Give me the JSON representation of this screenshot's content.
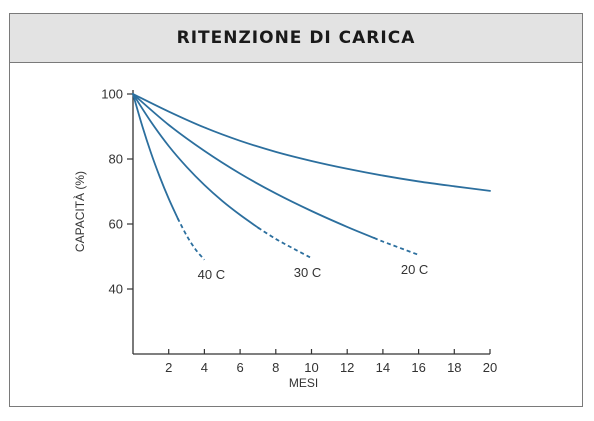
{
  "header": {
    "title": "RITENZIONE DI CARICA"
  },
  "chart_data": {
    "type": "line",
    "title": "RITENZIONE DI CARICA",
    "xlabel": "MESI",
    "ylabel": "CAPACITÀ (%)",
    "xlim": [
      0,
      20
    ],
    "ylim": [
      20,
      100
    ],
    "xticks": [
      2,
      4,
      6,
      8,
      10,
      12,
      14,
      16,
      18,
      20
    ],
    "yticks": [
      40,
      60,
      80,
      100
    ],
    "grid": false,
    "legend": "none",
    "colors": {
      "series": "#2c6f9e",
      "axis": "#333333"
    },
    "series": [
      {
        "name": "40 C",
        "x": [
          0,
          0.5,
          1,
          1.5,
          2,
          2.5,
          3,
          3.5,
          4
        ],
        "y": [
          100,
          90.5,
          82,
          74.5,
          67.8,
          61.8,
          56.5,
          52.2,
          49
        ],
        "dashed_from_x": 2.5
      },
      {
        "name": "30 C",
        "x": [
          0,
          1,
          2,
          3,
          4,
          5,
          6,
          7,
          8,
          9,
          10
        ],
        "y": [
          100,
          91.5,
          84,
          77.6,
          72,
          67.1,
          62.8,
          58.9,
          55.4,
          52.4,
          49.5
        ],
        "dashed_from_x": 7
      },
      {
        "name": "20 C",
        "x": [
          0,
          2,
          4,
          6,
          8,
          10,
          12,
          14,
          16
        ],
        "y": [
          100,
          90.5,
          82.5,
          75.5,
          69.4,
          64,
          59.1,
          54.6,
          50.5
        ],
        "dashed_from_x": 13.5
      },
      {
        "name": "",
        "x": [
          0,
          2,
          4,
          6,
          8,
          10,
          12,
          14,
          16,
          18,
          20
        ],
        "y": [
          100,
          94.6,
          89.7,
          85.6,
          82.2,
          79.4,
          77,
          74.9,
          73.1,
          71.6,
          70.2
        ],
        "dashed_from_x": null
      }
    ]
  }
}
